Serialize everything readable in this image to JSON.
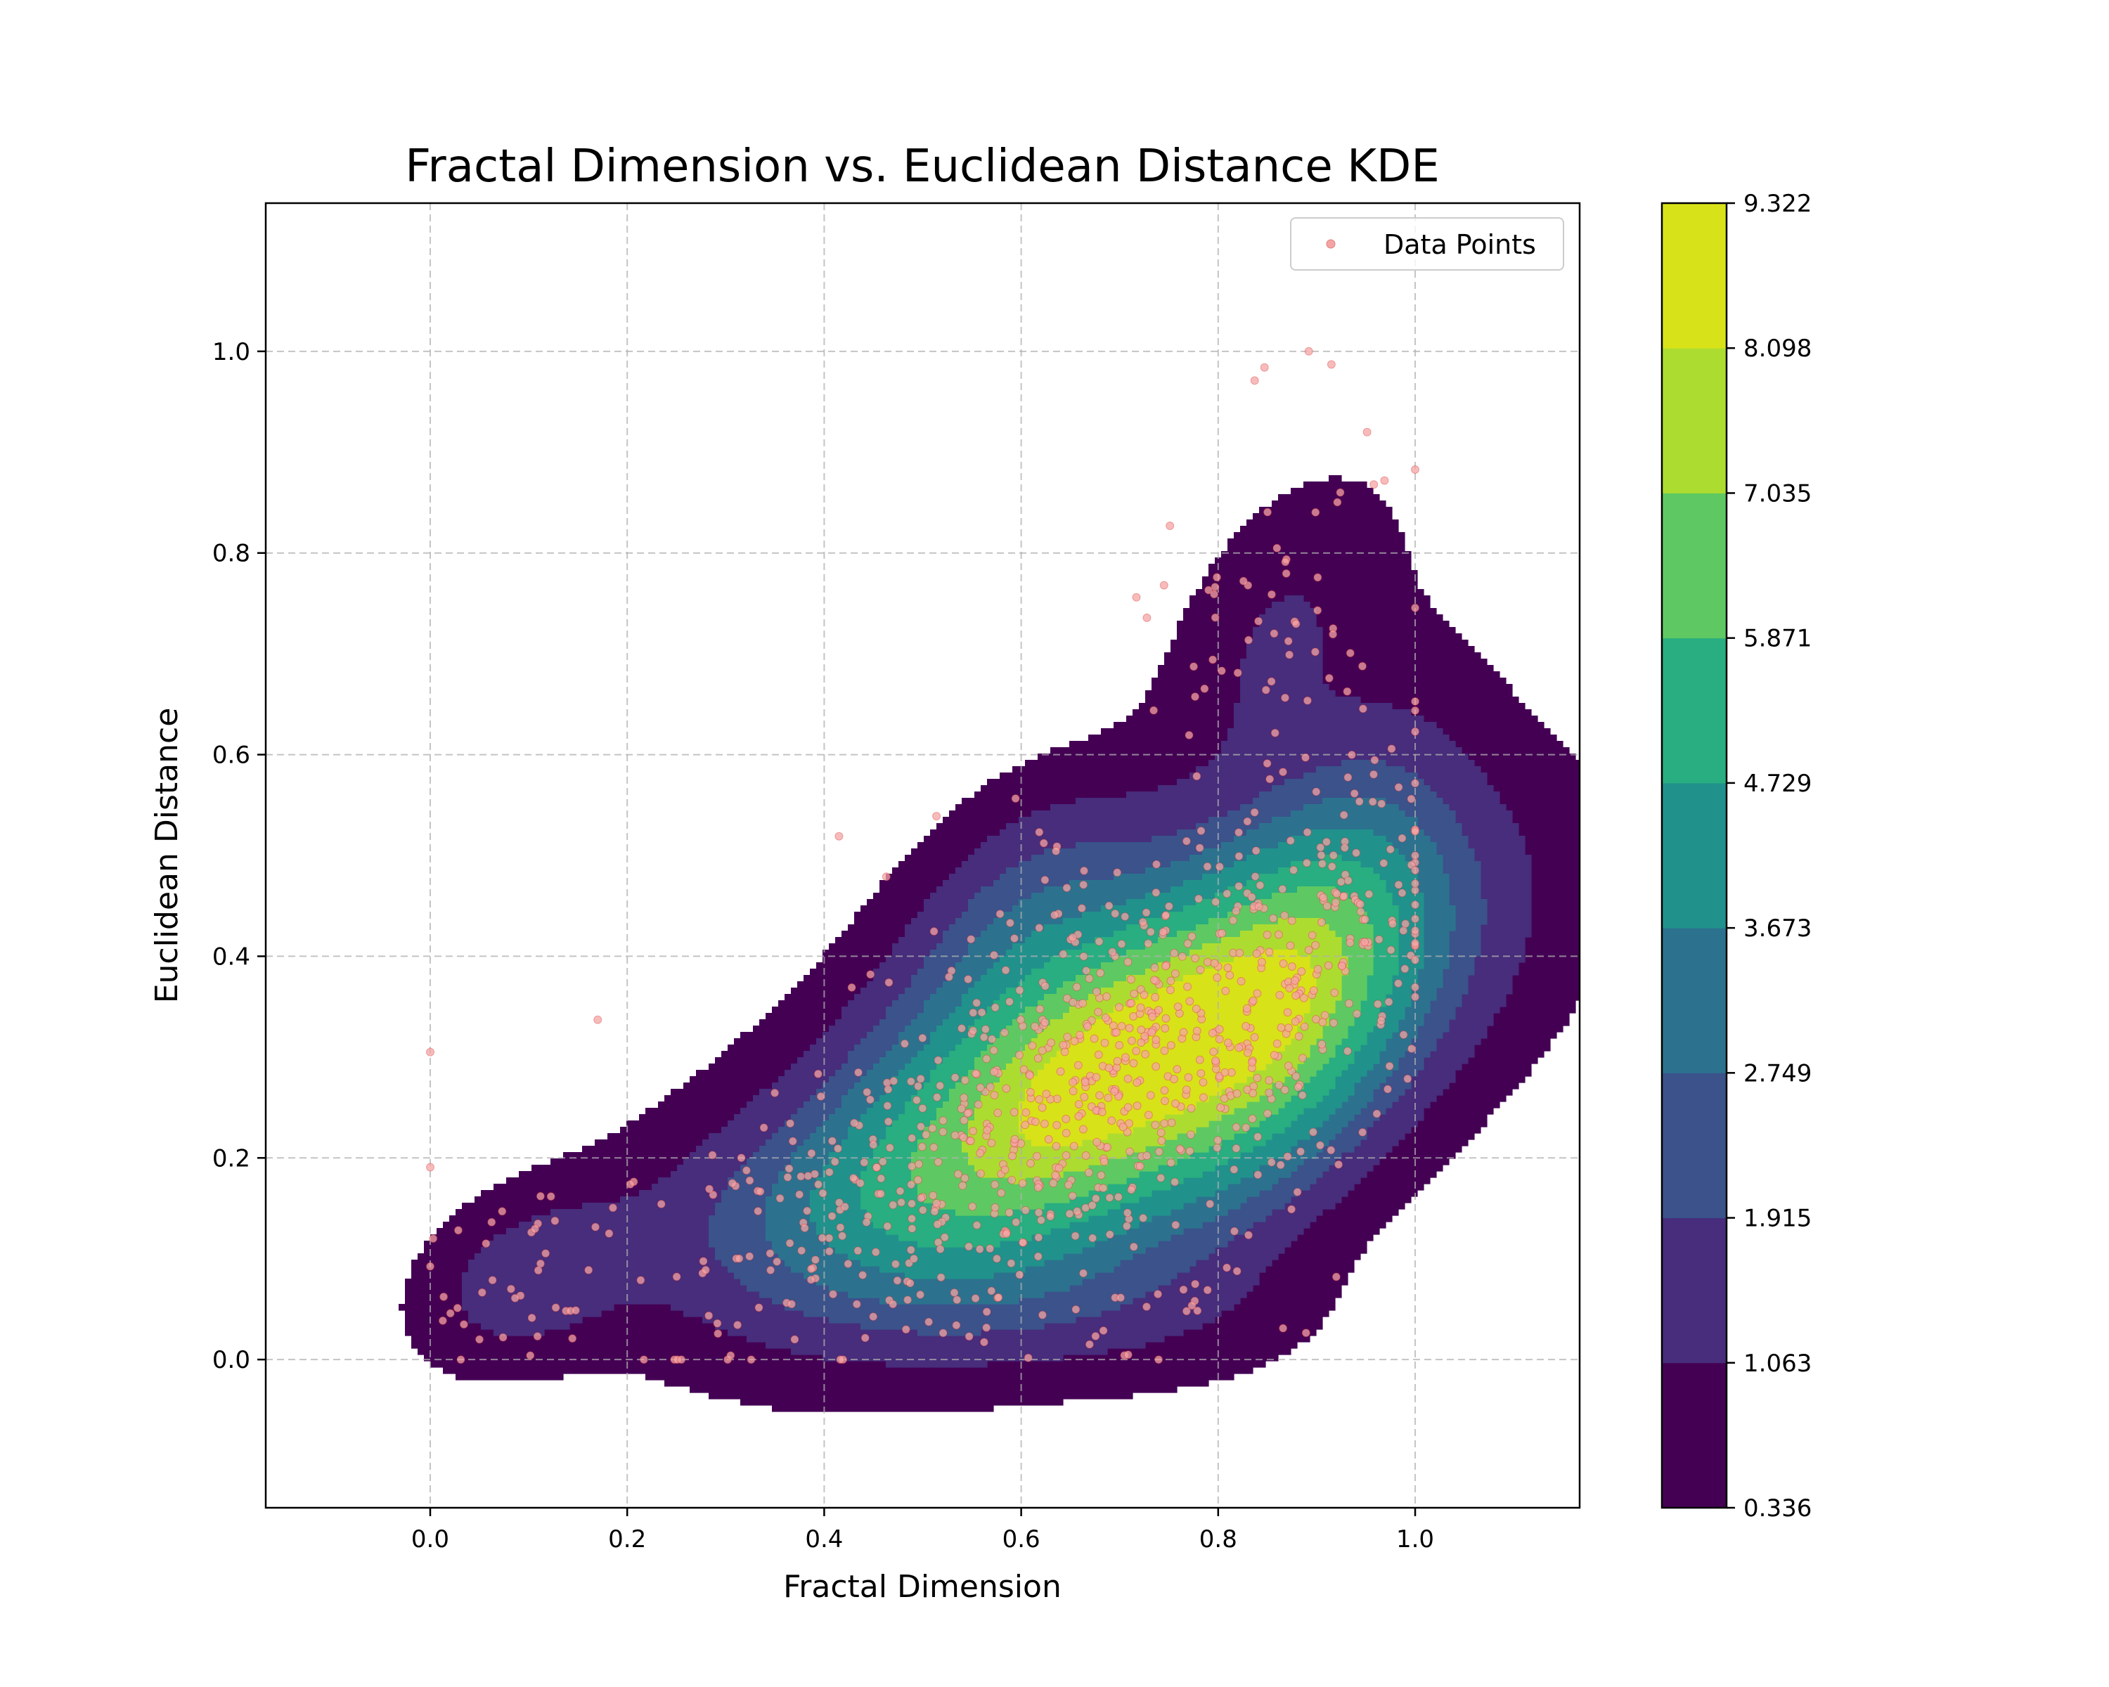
{
  "chart_data": {
    "type": "kde_contour_scatter",
    "title": "Fractal Dimension vs. Euclidean Distance KDE",
    "xlabel": "Fractal Dimension",
    "ylabel": "Euclidean Distance",
    "xlim": [
      -0.167,
      1.167
    ],
    "ylim": [
      -0.147,
      1.147
    ],
    "xticks": [
      "0.0",
      "0.2",
      "0.4",
      "0.6",
      "0.8",
      "1.0"
    ],
    "yticks": [
      "0.0",
      "0.2",
      "0.4",
      "0.6",
      "0.8",
      "1.0"
    ],
    "grid": true,
    "legend": {
      "placement": "top-right",
      "entries": [
        "Data Points"
      ]
    },
    "colorbar": {
      "ticks": [
        "0.336",
        "1.063",
        "1.915",
        "2.749",
        "3.673",
        "4.729",
        "5.871",
        "7.035",
        "8.098",
        "9.322"
      ],
      "level_colors": [
        "#440154",
        "#472d7b",
        "#3b528b",
        "#2c728e",
        "#21918c",
        "#28ae80",
        "#5ec962",
        "#addc30",
        "#d8e219"
      ]
    },
    "kde": {
      "peak": {
        "x": 0.72,
        "y": 0.3,
        "value": 9.322
      },
      "main_orientation_deg": 28,
      "main_spread": [
        0.21,
        0.1
      ]
    },
    "point_style": {
      "color": "#f4a4a4",
      "edge": "#d62728"
    },
    "outliers": [
      [
        0.0,
        0.305
      ],
      [
        0.003,
        0.12
      ],
      [
        0.05,
        0.02
      ],
      [
        0.073,
        0.147
      ],
      [
        0.112,
        0.162
      ],
      [
        0.17,
        0.337
      ],
      [
        0.255,
        0.0
      ],
      [
        0.415,
        0.519
      ],
      [
        0.514,
        0.539
      ],
      [
        0.428,
        0.369
      ],
      [
        0.447,
        0.382
      ],
      [
        0.717,
        0.756
      ],
      [
        0.745,
        0.768
      ],
      [
        0.751,
        0.827
      ],
      [
        0.837,
        0.971
      ],
      [
        0.847,
        0.984
      ],
      [
        0.892,
        1.0
      ],
      [
        0.915,
        0.987
      ],
      [
        0.958,
        0.868
      ],
      [
        0.924,
        0.86
      ],
      [
        0.92,
        0.082
      ],
      [
        0.305,
        0.004
      ],
      [
        0.37,
        0.02
      ]
    ],
    "n_points": 1000
  }
}
